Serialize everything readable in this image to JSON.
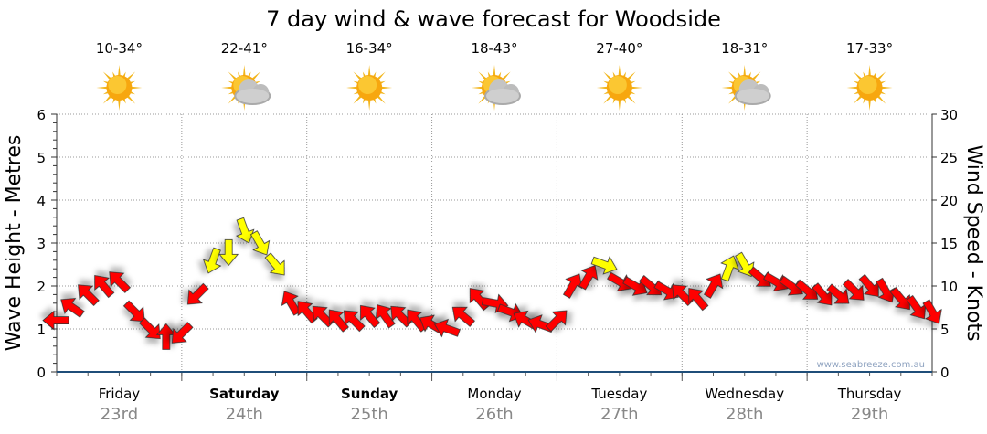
{
  "chart_data": {
    "type": "scatter",
    "title": "7 day wind & wave forecast for Woodside",
    "ylabel": "Wave Height - Metres",
    "y2label": "Wind Speed - Knots",
    "ylim": [
      0,
      6
    ],
    "y2lim": [
      0,
      30
    ],
    "yticks": [
      "0",
      "1",
      "2",
      "3",
      "4",
      "5",
      "6"
    ],
    "y2ticks": [
      "0",
      "5",
      "10",
      "15",
      "20",
      "25",
      "30"
    ],
    "grid": true,
    "watermark": "www.seabreeze.com.au",
    "days": [
      {
        "day": "Friday",
        "date": "23rd",
        "temp": "10-34°",
        "weather": "sunny",
        "bold": false
      },
      {
        "day": "Saturday",
        "date": "24th",
        "temp": "22-41°",
        "weather": "partly-cloudy",
        "bold": true
      },
      {
        "day": "Sunday",
        "date": "25th",
        "temp": "16-34°",
        "weather": "sunny",
        "bold": true
      },
      {
        "day": "Monday",
        "date": "26th",
        "temp": "18-43°",
        "weather": "partly-cloudy",
        "bold": false
      },
      {
        "day": "Tuesday",
        "date": "27th",
        "temp": "27-40°",
        "weather": "sunny",
        "bold": false
      },
      {
        "day": "Wednesday",
        "date": "28th",
        "temp": "18-31°",
        "weather": "partly-cloudy",
        "bold": false
      },
      {
        "day": "Thursday",
        "date": "29th",
        "temp": "17-33°",
        "weather": "sunny",
        "bold": false
      }
    ],
    "interval_hours": 3,
    "strong_wind_threshold_knots": 12,
    "colors": {
      "normal": "#ff0000",
      "strong": "#ffff00"
    },
    "wind_knots": [
      6,
      7.5,
      9,
      10,
      10.5,
      7,
      5,
      4,
      4.5,
      9,
      13,
      14,
      16.5,
      15,
      12.5,
      8,
      7,
      6.5,
      6,
      6,
      6.5,
      6.5,
      6.5,
      6,
      5.5,
      5,
      6.5,
      8.5,
      8,
      7,
      6,
      5.5,
      6,
      10,
      11,
      12.5,
      10.5,
      10,
      10,
      9.5,
      9,
      8.5,
      10,
      12,
      12.5,
      11,
      10.5,
      10,
      9.5,
      9,
      9,
      9.5,
      10,
      9.5,
      8.5,
      7.5,
      7
    ],
    "wind_arrow_heading_deg": [
      270,
      305,
      315,
      320,
      315,
      135,
      135,
      0,
      225,
      225,
      200,
      180,
      160,
      150,
      140,
      330,
      320,
      315,
      320,
      315,
      320,
      325,
      315,
      320,
      300,
      290,
      310,
      320,
      100,
      110,
      300,
      290,
      45,
      30,
      30,
      110,
      120,
      120,
      130,
      120,
      315,
      320,
      30,
      20,
      150,
      130,
      120,
      125,
      130,
      140,
      130,
      135,
      140,
      150,
      140,
      145,
      150
    ]
  }
}
